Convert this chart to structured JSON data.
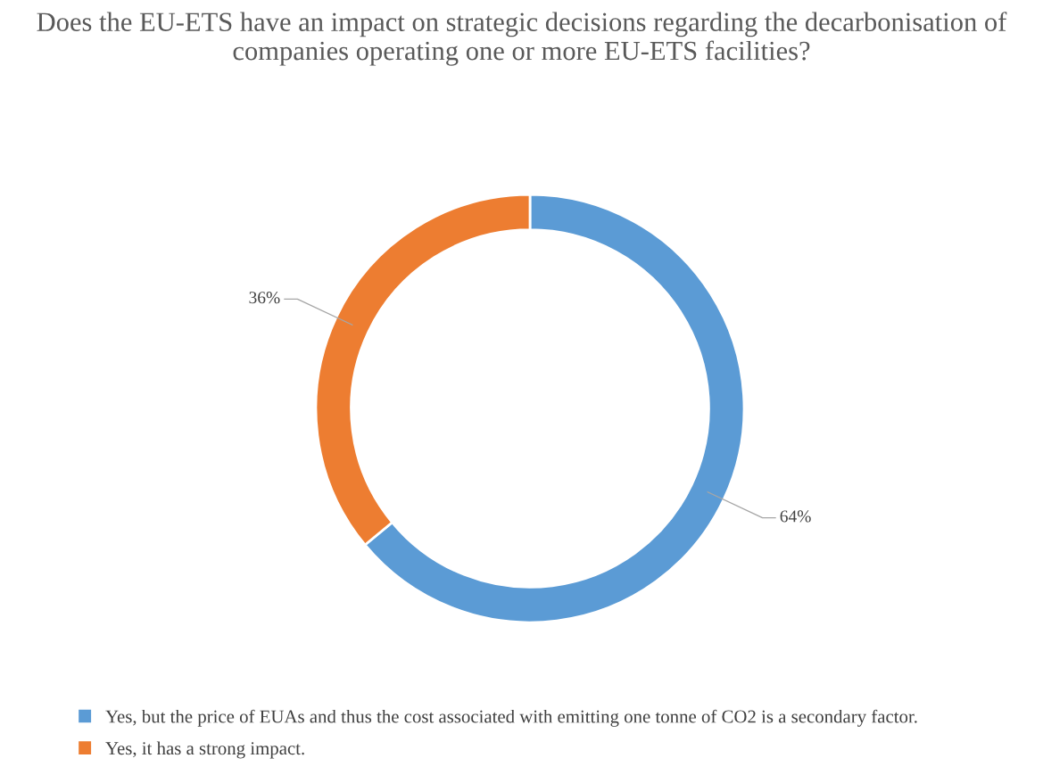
{
  "chart_data": {
    "type": "donut",
    "title": "Does the EU-ETS have an impact on strategic decisions regarding the decarbonisation of companies operating one or more EU-ETS facilities?",
    "categories": [
      "Yes, but the price of EUAs and thus the cost associated with emitting one tonne of CO2 is a secondary factor.",
      "Yes, it has a strong impact."
    ],
    "values": [
      64,
      36
    ],
    "colors": [
      "#5b9bd5",
      "#ed7d31"
    ],
    "value_labels": [
      "64%",
      "36%"
    ],
    "legend": "bottom"
  }
}
